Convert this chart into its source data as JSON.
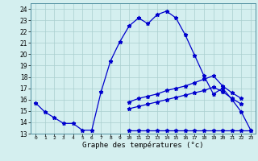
{
  "hours": [
    0,
    1,
    2,
    3,
    4,
    5,
    6,
    7,
    8,
    9,
    10,
    11,
    12,
    13,
    14,
    15,
    16,
    17,
    18,
    19,
    20,
    21,
    22,
    23
  ],
  "line_main": [
    15.7,
    14.9,
    14.4,
    13.9,
    13.9,
    13.3,
    13.3,
    16.7,
    19.4,
    21.1,
    22.5,
    23.2,
    22.7,
    23.5,
    23.8,
    23.2,
    21.7,
    19.9,
    18.1,
    16.5,
    17.0,
    16.0,
    14.9,
    13.3
  ],
  "line_min_x": [
    10,
    11,
    12,
    13,
    14,
    15,
    16,
    17,
    18,
    19,
    20,
    21,
    22,
    23
  ],
  "line_min_y": [
    13.3,
    13.3,
    13.3,
    13.3,
    13.3,
    13.3,
    13.3,
    13.3,
    13.3,
    13.3,
    13.3,
    13.3,
    13.3,
    13.3
  ],
  "line_avg_x": [
    10,
    11,
    12,
    13,
    14,
    15,
    16,
    17,
    18,
    19,
    20,
    21,
    22
  ],
  "line_avg_y": [
    15.2,
    15.4,
    15.6,
    15.8,
    16.0,
    16.2,
    16.4,
    16.6,
    16.8,
    17.1,
    16.7,
    16.1,
    15.6
  ],
  "line_max_x": [
    10,
    11,
    12,
    13,
    14,
    15,
    16,
    17,
    18,
    19,
    20,
    21,
    22
  ],
  "line_max_y": [
    15.8,
    16.1,
    16.3,
    16.5,
    16.8,
    17.0,
    17.2,
    17.5,
    17.8,
    18.1,
    17.2,
    16.6,
    16.1
  ],
  "color": "#0000cd",
  "bg_color": "#d4efef",
  "grid_color": "#aacfcf",
  "xlabel": "Graphe des températures (°c)",
  "ylim": [
    13,
    24.5
  ],
  "xlim": [
    -0.5,
    23.5
  ],
  "yticks": [
    13,
    14,
    15,
    16,
    17,
    18,
    19,
    20,
    21,
    22,
    23,
    24
  ]
}
